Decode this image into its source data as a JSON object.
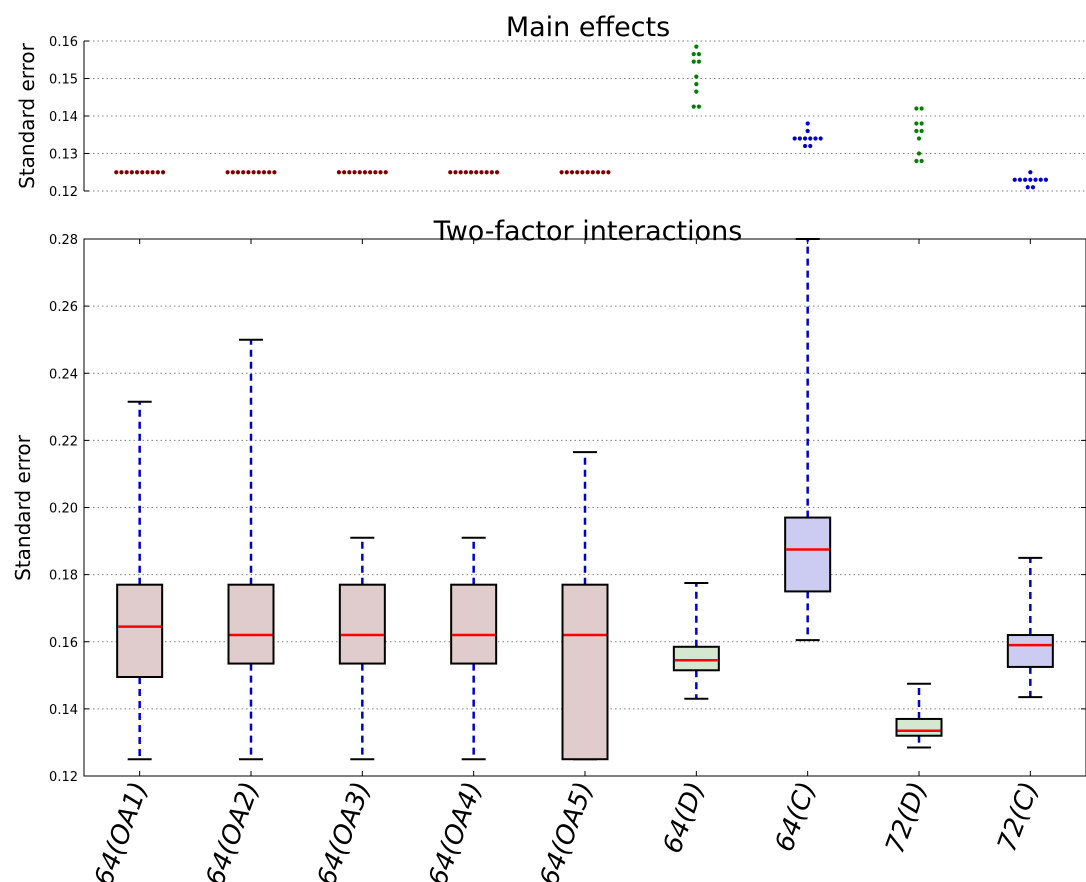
{
  "chart_data": [
    {
      "type": "scatter",
      "title": "Main effects",
      "ylabel": "Standard error",
      "ylim": [
        0.12,
        0.16
      ],
      "yticks": [
        "0.12",
        "0.13",
        "0.14",
        "0.15",
        "0.16"
      ],
      "grid": true,
      "categories": [
        "64(OA1)",
        "64(OA2)",
        "64(OA3)",
        "64(OA4)",
        "64(OA5)",
        "64(D)",
        "64(C)",
        "72(D)",
        "72(C)"
      ],
      "colors": [
        "#800000",
        "#800000",
        "#800000",
        "#800000",
        "#800000",
        "#008000",
        "#0000cc",
        "#008000",
        "#0000cc"
      ],
      "values": [
        [
          0.125,
          0.125,
          0.125,
          0.125,
          0.125,
          0.125,
          0.125,
          0.125,
          0.125,
          0.125
        ],
        [
          0.125,
          0.125,
          0.125,
          0.125,
          0.125,
          0.125,
          0.125,
          0.125,
          0.125,
          0.125
        ],
        [
          0.125,
          0.125,
          0.125,
          0.125,
          0.125,
          0.125,
          0.125,
          0.125,
          0.125,
          0.125
        ],
        [
          0.125,
          0.125,
          0.125,
          0.125,
          0.125,
          0.125,
          0.125,
          0.125,
          0.125,
          0.125
        ],
        [
          0.125,
          0.125,
          0.125,
          0.125,
          0.125,
          0.125,
          0.125,
          0.125,
          0.125,
          0.125
        ],
        [
          0.1585,
          0.1565,
          0.1565,
          0.1545,
          0.1545,
          0.1505,
          0.1485,
          0.1465,
          0.1425,
          0.1425
        ],
        [
          0.138,
          0.136,
          0.134,
          0.134,
          0.134,
          0.134,
          0.134,
          0.134,
          0.132,
          0.132
        ],
        [
          0.142,
          0.142,
          0.138,
          0.138,
          0.136,
          0.136,
          0.134,
          0.13,
          0.128,
          0.128
        ],
        [
          0.125,
          0.123,
          0.123,
          0.123,
          0.123,
          0.123,
          0.123,
          0.123,
          0.121,
          0.121
        ]
      ]
    },
    {
      "type": "box",
      "title": "Two-factor interactions",
      "ylabel": "Standard error",
      "ylim": [
        0.12,
        0.28
      ],
      "yticks": [
        "0.12",
        "0.14",
        "0.16",
        "0.18",
        "0.20",
        "0.22",
        "0.24",
        "0.26",
        "0.28"
      ],
      "grid": true,
      "categories": [
        "64(OA1)",
        "64(OA2)",
        "64(OA3)",
        "64(OA4)",
        "64(OA5)",
        "64(D)",
        "64(C)",
        "72(D)",
        "72(C)"
      ],
      "box_colors": [
        "#e0cccc",
        "#e0cccc",
        "#e0cccc",
        "#e0cccc",
        "#e0cccc",
        "#d4e8d0",
        "#ccccf2",
        "#d4e8d0",
        "#ccccf2"
      ],
      "median_color": "#ff0000",
      "whisker_color": "#0000cc",
      "boxes": [
        {
          "whislo": 0.125,
          "q1": 0.1495,
          "med": 0.1645,
          "q3": 0.177,
          "whishi": 0.2315
        },
        {
          "whislo": 0.125,
          "q1": 0.1535,
          "med": 0.162,
          "q3": 0.177,
          "whishi": 0.25
        },
        {
          "whislo": 0.125,
          "q1": 0.1535,
          "med": 0.162,
          "q3": 0.177,
          "whishi": 0.191
        },
        {
          "whislo": 0.125,
          "q1": 0.1535,
          "med": 0.162,
          "q3": 0.177,
          "whishi": 0.191
        },
        {
          "whislo": 0.125,
          "q1": 0.125,
          "med": 0.162,
          "q3": 0.177,
          "whishi": 0.2165
        },
        {
          "whislo": 0.143,
          "q1": 0.1515,
          "med": 0.1545,
          "q3": 0.1585,
          "whishi": 0.1775
        },
        {
          "whislo": 0.1605,
          "q1": 0.175,
          "med": 0.1875,
          "q3": 0.197,
          "whishi": 0.28
        },
        {
          "whislo": 0.1285,
          "q1": 0.132,
          "med": 0.1335,
          "q3": 0.137,
          "whishi": 0.1475
        },
        {
          "whislo": 0.1435,
          "q1": 0.1525,
          "med": 0.159,
          "q3": 0.162,
          "whishi": 0.185
        }
      ]
    }
  ]
}
